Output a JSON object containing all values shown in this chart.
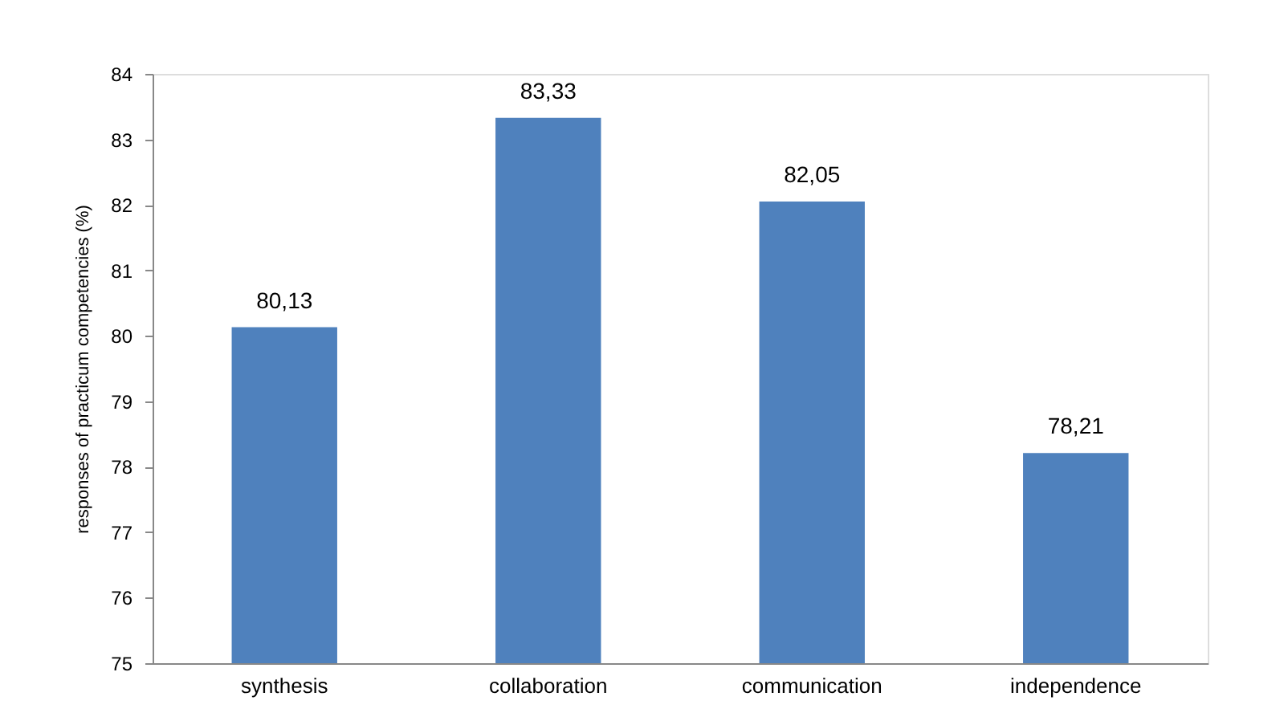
{
  "chart_data": {
    "type": "bar",
    "ylabel": "responses of practicum competencies (%)",
    "categories": [
      "synthesis",
      "collaboration",
      "communication",
      "independence"
    ],
    "values": [
      80.13,
      83.33,
      82.05,
      78.21
    ],
    "value_labels": [
      "80,13",
      "83,33",
      "82,05",
      "78,21"
    ],
    "color": "#4f81bd",
    "ylim": [
      75,
      84
    ],
    "yticks": [
      75,
      76,
      77,
      78,
      79,
      80,
      81,
      82,
      83,
      84
    ],
    "grid": false
  }
}
